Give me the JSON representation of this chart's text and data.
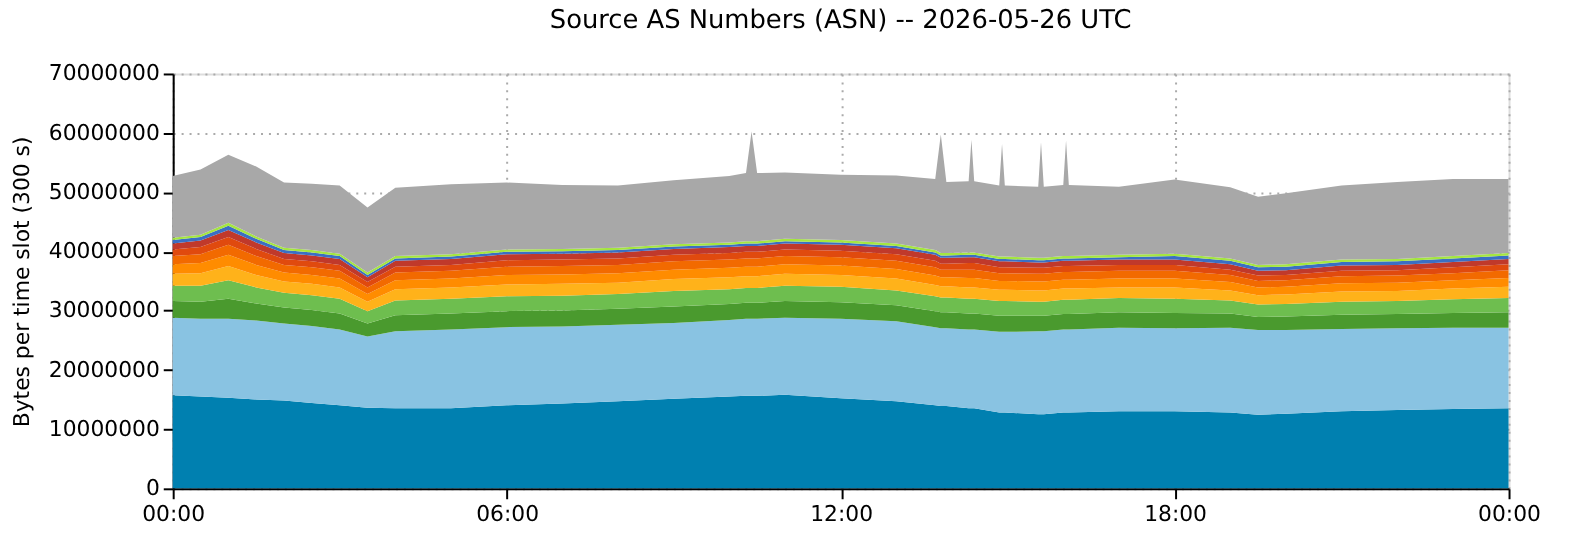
{
  "chart_data": {
    "type": "area",
    "stacked": true,
    "title": "Source AS Numbers (ASN) -- 2026-05-26 UTC",
    "ylabel": "Bytes per time slot (300 s)",
    "x": [
      0,
      0.5,
      1,
      1.5,
      2,
      2.5,
      3,
      3.5,
      4,
      5,
      6,
      7,
      8,
      9,
      10,
      10.3,
      10.4,
      10.5,
      11,
      12,
      13,
      13.7,
      13.8,
      13.9,
      14.3,
      14.35,
      14.4,
      14.85,
      14.9,
      14.95,
      15.55,
      15.6,
      15.65,
      16,
      16.05,
      16.1,
      17,
      18,
      19,
      19.5,
      20,
      21,
      22,
      23,
      24
    ],
    "xlim": [
      0,
      24
    ],
    "xticks": [
      {
        "value": 0,
        "label": "00:00"
      },
      {
        "value": 6,
        "label": "06:00"
      },
      {
        "value": 12,
        "label": "12:00"
      },
      {
        "value": 18,
        "label": "18:00"
      },
      {
        "value": 24,
        "label": "00:00"
      }
    ],
    "ylim": [
      0,
      70000000
    ],
    "yticks": [
      0,
      10000000,
      20000000,
      30000000,
      40000000,
      50000000,
      60000000,
      70000000
    ],
    "grid": true,
    "legend": false,
    "series": [
      {
        "color": "#0080b0",
        "values": [
          15700000.0,
          15500000.0,
          15300000.0,
          15000000.0,
          14800000.0,
          14400000.0,
          14000000.0,
          13600000.0,
          13500000.0,
          13500000.0,
          14000000.0,
          14300000.0,
          14700000.0,
          15100000.0,
          15500000.0,
          15600000.0,
          15600000.0,
          15600000.0,
          15800000.0,
          15200000.0,
          14700000.0,
          14000000.0,
          13900000.0,
          13900000.0,
          13500000.0,
          13500000.0,
          13500000.0,
          12800000.0,
          12800000.0,
          12800000.0,
          12500000.0,
          12500000.0,
          12500000.0,
          12800000.0,
          12800000.0,
          12800000.0,
          13000000.0,
          13000000.0,
          12800000.0,
          12400000.0,
          12600000.0,
          13000000.0,
          13200000.0,
          13400000.0,
          13500000.0
        ]
      },
      {
        "color": "#89c3e2",
        "values": [
          13100000.0,
          13100000.0,
          13300000.0,
          13300000.0,
          13000000.0,
          13000000.0,
          12800000.0,
          12000000.0,
          13000000.0,
          13300000.0,
          13200000.0,
          13000000.0,
          12900000.0,
          12800000.0,
          12900000.0,
          13000000.0,
          13000000.0,
          13000000.0,
          13000000.0,
          13400000.0,
          13500000.0,
          13200000.0,
          13100000.0,
          13100000.0,
          13300000.0,
          13300000.0,
          13300000.0,
          13600000.0,
          13600000.0,
          13600000.0,
          14000000.0,
          14000000.0,
          14000000.0,
          14000000.0,
          14000000.0,
          14000000.0,
          14100000.0,
          14000000.0,
          14300000.0,
          14300000.0,
          14100000.0,
          13900000.0,
          13800000.0,
          13700000.0,
          13600000.0
        ]
      },
      {
        "color": "#4a9a2e",
        "values": [
          2800000.0,
          2900000.0,
          3400000.0,
          2900000.0,
          2700000.0,
          2700000.0,
          2700000.0,
          2200000.0,
          2700000.0,
          2700000.0,
          2700000.0,
          2700000.0,
          2700000.0,
          2800000.0,
          2700000.0,
          2700000.0,
          2700000.0,
          2700000.0,
          2800000.0,
          2800000.0,
          2700000.0,
          2700000.0,
          2700000.0,
          2700000.0,
          2700000.0,
          2700000.0,
          2700000.0,
          2700000.0,
          2700000.0,
          2700000.0,
          2600000.0,
          2600000.0,
          2600000.0,
          2600000.0,
          2600000.0,
          2600000.0,
          2600000.0,
          2600000.0,
          2400000.0,
          2200000.0,
          2300000.0,
          2400000.0,
          2400000.0,
          2500000.0,
          2600000.0
        ]
      },
      {
        "color": "#6ebe4f",
        "values": [
          2600000.0,
          2700000.0,
          3100000.0,
          2700000.0,
          2500000.0,
          2500000.0,
          2500000.0,
          2100000.0,
          2500000.0,
          2500000.0,
          2500000.0,
          2500000.0,
          2500000.0,
          2600000.0,
          2500000.0,
          2500000.0,
          2500000.0,
          2500000.0,
          2600000.0,
          2600000.0,
          2500000.0,
          2500000.0,
          2500000.0,
          2500000.0,
          2500000.0,
          2500000.0,
          2500000.0,
          2500000.0,
          2500000.0,
          2500000.0,
          2400000.0,
          2400000.0,
          2400000.0,
          2400000.0,
          2400000.0,
          2400000.0,
          2400000.0,
          2400000.0,
          2200000.0,
          2100000.0,
          2100000.0,
          2200000.0,
          2200000.0,
          2300000.0,
          2400000.0
        ]
      },
      {
        "color": "#ffb21a",
        "values": [
          2000000.0,
          2100000.0,
          2400000.0,
          2100000.0,
          1900000.0,
          1900000.0,
          1900000.0,
          1600000.0,
          1900000.0,
          1900000.0,
          2000000.0,
          2000000.0,
          1900000.0,
          2000000.0,
          2000000.0,
          2000000.0,
          2000000.0,
          2000000.0,
          2000000.0,
          2000000.0,
          2000000.0,
          1900000.0,
          1900000.0,
          1900000.0,
          1900000.0,
          1900000.0,
          1900000.0,
          1900000.0,
          1900000.0,
          1900000.0,
          1900000.0,
          1900000.0,
          1900000.0,
          1900000.0,
          1900000.0,
          1900000.0,
          1800000.0,
          1900000.0,
          1700000.0,
          1600000.0,
          1600000.0,
          1700000.0,
          1700000.0,
          1800000.0,
          1900000.0
        ]
      },
      {
        "color": "#ff8c00",
        "values": [
          1600000.0,
          1700000.0,
          1900000.0,
          1700000.0,
          1500000.0,
          1500000.0,
          1500000.0,
          1300000.0,
          1500000.0,
          1500000.0,
          1600000.0,
          1600000.0,
          1600000.0,
          1600000.0,
          1600000.0,
          1600000.0,
          1600000.0,
          1600000.0,
          1600000.0,
          1600000.0,
          1600000.0,
          1600000.0,
          1500000.0,
          1500000.0,
          1600000.0,
          1600000.0,
          1600000.0,
          1500000.0,
          1500000.0,
          1500000.0,
          1500000.0,
          1500000.0,
          1500000.0,
          1500000.0,
          1500000.0,
          1500000.0,
          1500000.0,
          1500000.0,
          1400000.0,
          1300000.0,
          1300000.0,
          1400000.0,
          1400000.0,
          1400000.0,
          1500000.0
        ]
      },
      {
        "color": "#f26a00",
        "values": [
          1400000.0,
          1500000.0,
          1700000.0,
          1500000.0,
          1300000.0,
          1300000.0,
          1300000.0,
          1100000.0,
          1300000.0,
          1300000.0,
          1400000.0,
          1400000.0,
          1400000.0,
          1400000.0,
          1400000.0,
          1400000.0,
          1400000.0,
          1400000.0,
          1400000.0,
          1400000.0,
          1400000.0,
          1400000.0,
          1300000.0,
          1300000.0,
          1400000.0,
          1400000.0,
          1400000.0,
          1300000.0,
          1300000.0,
          1300000.0,
          1300000.0,
          1300000.0,
          1300000.0,
          1300000.0,
          1300000.0,
          1300000.0,
          1300000.0,
          1300000.0,
          1200000.0,
          1100000.0,
          1100000.0,
          1200000.0,
          1200000.0,
          1200000.0,
          1300000.0
        ]
      },
      {
        "color": "#e04a0e",
        "values": [
          1100000.0,
          1200000.0,
          1300000.0,
          1200000.0,
          1000000.0,
          1000000.0,
          1000000.0,
          900000.0,
          1000000.0,
          1000000.0,
          1100000.0,
          1100000.0,
          1100000.0,
          1100000.0,
          1100000.0,
          1100000.0,
          1100000.0,
          1100000.0,
          1100000.0,
          1100000.0,
          1100000.0,
          1100000.0,
          1000000.0,
          1000000.0,
          1100000.0,
          1100000.0,
          1100000.0,
          1000000.0,
          1000000.0,
          1000000.0,
          1000000.0,
          1000000.0,
          1000000.0,
          1000000.0,
          1000000.0,
          1000000.0,
          1000000.0,
          1000000.0,
          900000.0,
          900000.0,
          900000.0,
          900000.0,
          900000.0,
          1000000.0,
          1000000.0
        ]
      },
      {
        "color": "#c0392b",
        "values": [
          1000000.0,
          1100000.0,
          1200000.0,
          1100000.0,
          1000000.0,
          1000000.0,
          1000000.0,
          800000.0,
          1000000.0,
          1000000.0,
          1000000.0,
          1000000.0,
          1000000.0,
          1000000.0,
          1000000.0,
          1000000.0,
          1000000.0,
          1000000.0,
          1000000.0,
          1000000.0,
          1000000.0,
          1000000.0,
          1000000.0,
          1000000.0,
          1000000.0,
          1000000.0,
          1000000.0,
          1000000.0,
          1000000.0,
          1000000.0,
          900000.0,
          900000.0,
          900000.0,
          900000.0,
          900000.0,
          900000.0,
          900000.0,
          900000.0,
          900000.0,
          800000.0,
          800000.0,
          900000.0,
          900000.0,
          900000.0,
          900000.0
        ]
      },
      {
        "color": "#3a6fc4",
        "values": [
          600000.0,
          600000.0,
          700000.0,
          600000.0,
          500000.0,
          500000.0,
          500000.0,
          400000.0,
          400000.0,
          400000.0,
          400000.0,
          400000.0,
          400000.0,
          400000.0,
          400000.0,
          400000.0,
          400000.0,
          400000.0,
          400000.0,
          400000.0,
          400000.0,
          400000.0,
          400000.0,
          400000.0,
          400000.0,
          400000.0,
          400000.0,
          400000.0,
          400000.0,
          400000.0,
          400000.0,
          400000.0,
          400000.0,
          400000.0,
          400000.0,
          400000.0,
          400000.0,
          600000.0,
          600000.0,
          600000.0,
          600000.0,
          600000.0,
          600000.0,
          600000.0,
          600000.0
        ]
      },
      {
        "color": "#a5e640",
        "values": [
          400000.0,
          400000.0,
          500000.0,
          400000.0,
          400000.0,
          400000.0,
          400000.0,
          400000.0,
          400000.0,
          400000.0,
          400000.0,
          400000.0,
          400000.0,
          400000.0,
          400000.0,
          400000.0,
          400000.0,
          400000.0,
          400000.0,
          400000.0,
          400000.0,
          400000.0,
          400000.0,
          400000.0,
          400000.0,
          400000.0,
          400000.0,
          400000.0,
          400000.0,
          400000.0,
          400000.0,
          400000.0,
          400000.0,
          400000.0,
          400000.0,
          400000.0,
          400000.0,
          400000.0,
          400000.0,
          400000.0,
          400000.0,
          400000.0,
          400000.0,
          400000.0,
          400000.0
        ]
      },
      {
        "color": "#a8a8a8",
        "values": [
          10400000.0,
          11000000.0,
          11500000.0,
          11800000.0,
          11000000.0,
          11200000.0,
          11500000.0,
          11000000.0,
          11500000.0,
          11800000.0,
          11300000.0,
          10800000.0,
          10500000.0,
          10800000.0,
          11200000.0,
          11500000.0,
          18500000.0,
          11500000.0,
          11200000.0,
          11000000.0,
          11500000.0,
          12000000.0,
          20000000.0,
          12000000.0,
          12000000.0,
          19000000.0,
          12000000.0,
          12000000.0,
          19000000.0,
          12000000.0,
          12000000.0,
          19500000.0,
          12000000.0,
          12000000.0,
          19500000.0,
          12000000.0,
          11500000.0,
          12500000.0,
          12000000.0,
          11500000.0,
          12000000.0,
          12500000.0,
          13000000.0,
          13000000.0,
          12500000.0
        ]
      }
    ]
  }
}
